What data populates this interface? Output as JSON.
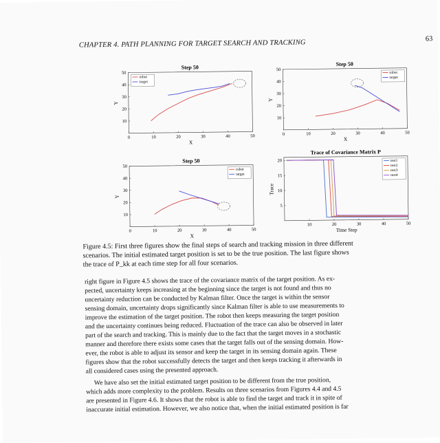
{
  "header": {
    "title": "CHAPTER 4.  PATH PLANNING FOR TARGET SEARCH AND TRACKING",
    "page_number": "63"
  },
  "figures": {
    "fig1": {
      "title": "Step 50",
      "xlabel": "X",
      "ylabel": "Y",
      "xticks": [
        "0",
        "10",
        "20",
        "30",
        "40",
        "50"
      ],
      "yticks": [
        "10",
        "20",
        "30",
        "40",
        "50"
      ],
      "legend": [
        "robot",
        "target"
      ]
    },
    "fig2": {
      "title": "Step 50",
      "xlabel": "X",
      "ylabel": "Y",
      "xticks": [
        "0",
        "10",
        "20",
        "30",
        "40",
        "50"
      ],
      "yticks": [
        "10",
        "20",
        "30",
        "40",
        "50"
      ],
      "legend": [
        "robot",
        "target"
      ]
    },
    "fig3": {
      "title": "Step 50",
      "xlabel": "X",
      "ylabel": "Y",
      "xticks": [
        "0",
        "10",
        "20",
        "30",
        "40",
        "50"
      ],
      "yticks": [
        "10",
        "20",
        "30",
        "40",
        "50"
      ],
      "legend": [
        "robot",
        "target"
      ]
    },
    "fig4": {
      "title": "Trace of Covariance Matrix P",
      "xlabel": "Time Step",
      "ylabel": "Trace",
      "xticks": [
        "10",
        "20",
        "30",
        "40",
        "50"
      ],
      "yticks": [
        "5",
        "10",
        "15",
        "20"
      ],
      "legend": [
        "test1",
        "test2",
        "test3",
        "test4"
      ]
    }
  },
  "chart_data": [
    {
      "type": "line",
      "title": "Step 50",
      "xlabel": "X",
      "ylabel": "Y",
      "xlim": [
        0,
        50
      ],
      "ylim": [
        0,
        50
      ],
      "legend_position": "top-left",
      "series": [
        {
          "name": "robot",
          "color": "#d94a4a",
          "points": [
            [
              9,
              10
            ],
            [
              12,
              15
            ],
            [
              16,
              20
            ],
            [
              20,
              24
            ],
            [
              24,
              28
            ],
            [
              28,
              31
            ],
            [
              33,
              34
            ],
            [
              38,
              37
            ],
            [
              42,
              40
            ]
          ]
        },
        {
          "name": "target",
          "color": "#4a4ad9",
          "points": [
            [
              16,
              31
            ],
            [
              20,
              32
            ],
            [
              24,
              34
            ],
            [
              27,
              35
            ],
            [
              31,
              36
            ],
            [
              35,
              37
            ],
            [
              38,
              38
            ],
            [
              41,
              40
            ]
          ]
        }
      ],
      "sensing_region_center": [
        45,
        40
      ]
    },
    {
      "type": "line",
      "title": "Step 50",
      "xlabel": "X",
      "ylabel": "Y",
      "xlim": [
        0,
        50
      ],
      "ylim": [
        0,
        50
      ],
      "legend_position": "top-right",
      "series": [
        {
          "name": "robot",
          "color": "#d94a4a",
          "points": [
            [
              13,
              11
            ],
            [
              20,
              13
            ],
            [
              27,
              16
            ],
            [
              33,
              20
            ],
            [
              38,
              24
            ],
            [
              42,
              21
            ],
            [
              47,
              15
            ]
          ]
        },
        {
          "name": "target",
          "color": "#4a4ad9",
          "points": [
            [
              29,
              36
            ],
            [
              32,
              34
            ],
            [
              35,
              30
            ],
            [
              38,
              26
            ],
            [
              41,
              22
            ],
            [
              44,
              18
            ],
            [
              47,
              14
            ]
          ]
        }
      ],
      "sensing_region_center": [
        30,
        38
      ]
    },
    {
      "type": "line",
      "title": "Step 50",
      "xlabel": "X",
      "ylabel": "Y",
      "xlim": [
        0,
        50
      ],
      "ylim": [
        0,
        50
      ],
      "legend_position": "top-right",
      "series": [
        {
          "name": "robot",
          "color": "#d94a4a",
          "points": [
            [
              10,
              10
            ],
            [
              13,
              14
            ],
            [
              17,
              18
            ],
            [
              21,
              21
            ],
            [
              25,
              23
            ],
            [
              29,
              23
            ],
            [
              33,
              20
            ],
            [
              36,
              17
            ]
          ]
        },
        {
          "name": "target",
          "color": "#4a4ad9",
          "points": [
            [
              20,
              29
            ],
            [
              24,
              26
            ],
            [
              27,
              24
            ],
            [
              30,
              22
            ],
            [
              33,
              20
            ],
            [
              36,
              18
            ]
          ]
        }
      ],
      "sensing_region_center": [
        38,
        16
      ]
    },
    {
      "type": "line",
      "title": "Trace of Covariance Matrix P",
      "xlabel": "Time Step",
      "ylabel": "Trace",
      "xlim": [
        0,
        50
      ],
      "ylim": [
        0,
        21
      ],
      "legend_position": "top-right",
      "series": [
        {
          "name": "test1",
          "color": "#4a6fd0",
          "points": [
            [
              1,
              20
            ],
            [
              16,
              20
            ],
            [
              17,
              1
            ],
            [
              50,
              0.8
            ]
          ]
        },
        {
          "name": "test2",
          "color": "#d94a4a",
          "points": [
            [
              1,
              20
            ],
            [
              18,
              20
            ],
            [
              19,
              1.2
            ],
            [
              50,
              1.0
            ]
          ]
        },
        {
          "name": "test3",
          "color": "#d0a040",
          "points": [
            [
              1,
              20
            ],
            [
              19,
              20
            ],
            [
              20,
              1.4
            ],
            [
              50,
              1.2
            ]
          ]
        },
        {
          "name": "test4",
          "color": "#8a4ad0",
          "points": [
            [
              1,
              20
            ],
            [
              20,
              20
            ],
            [
              21,
              1.6
            ],
            [
              50,
              1.3
            ]
          ]
        }
      ]
    }
  ],
  "caption": [
    "Figure 4.5: First three figures show the final steps of search and tracking mission in three different",
    "scenarios. The initial estimated target position is set to be the true position. The last figure shows",
    "the trace of P_kk at each time step for all four scenarios."
  ],
  "body": {
    "para1": [
      "right figure in Figure 4.5 shows the trace of the covariance matrix of the target position.  As ex-",
      "pected, uncertainty keeps increasing at the beginning since the target is not found and thus no",
      "uncertainty reduction can be conducted by Kalman filter.  Once the target is within the sensor",
      "sensing domain, uncertainty drops significantly since Kalman filter is able to use measurements to",
      "improve the estimation of the target position.  The robot then keeps measuring the target position",
      "and the uncertainty continues being reduced. Fluctuation of the trace can also be observed in later",
      "part of the search and tracking. This is mainly due to the fact that the target moves in a stochastic",
      "manner and therefore there exists some cases that the target falls out of the sensing domain. How-",
      "ever, the robot is able to adjust its sensor and keep the target in its sensing domain again. These",
      "figures show that the robot successfully detects the target and then keeps tracking it afterwards in",
      "all considered cases using the presented approach."
    ],
    "para2": [
      "We have also set the initial estimated target position to be different from the true position,",
      "which adds more complexity to the problem. Results on three scenarios from Figures 4.4 and 4.5",
      "are presented in Figure 4.6. It shows that the robot is able to find the target and track it in spite of",
      "inaccurate initial estimation. However, we also notice that, when the initial estimated position is far"
    ]
  }
}
